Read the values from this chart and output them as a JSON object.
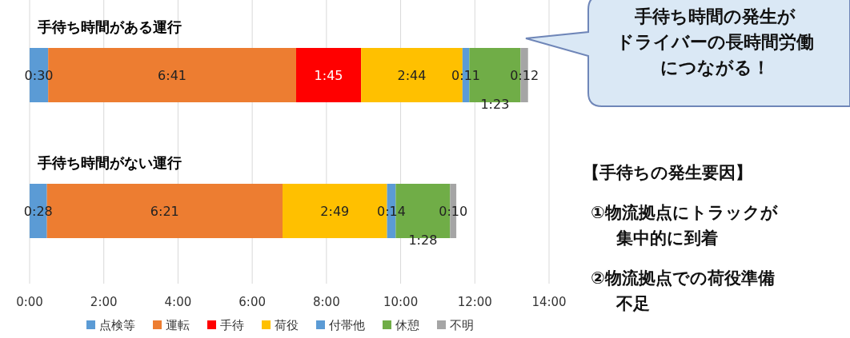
{
  "chart_data": {
    "type": "bar",
    "orientation": "horizontal",
    "stacked": true,
    "categories": [
      "手待ち時間がある運行",
      "手待ち時間がない運行"
    ],
    "series": [
      {
        "name": "点検等",
        "color": "#5b9bd5",
        "values": [
          30,
          28
        ],
        "value_labels": [
          "0:30",
          "0:28"
        ]
      },
      {
        "name": "運転",
        "color": "#ed7d31",
        "values": [
          401,
          381
        ],
        "value_labels": [
          "6:41",
          "6:21"
        ]
      },
      {
        "name": "手待",
        "color": "#ff0000",
        "values": [
          105,
          null
        ],
        "value_labels": [
          "1:45",
          null
        ]
      },
      {
        "name": "荷役",
        "color": "#ffc000",
        "values": [
          164,
          169
        ],
        "value_labels": [
          "2:44",
          "2:49"
        ]
      },
      {
        "name": "付帯他",
        "color": "#5b9bd5",
        "values": [
          11,
          14
        ],
        "value_labels": [
          "0:11",
          "0:14"
        ]
      },
      {
        "name": "休憩",
        "color": "#70ad47",
        "values": [
          83,
          88
        ],
        "value_labels": [
          "1:23",
          "1:28"
        ]
      },
      {
        "name": "不明",
        "color": "#a5a5a5",
        "values": [
          12,
          10
        ],
        "value_labels": [
          "0:12",
          "0:10"
        ]
      }
    ],
    "xlim": [
      0,
      840
    ],
    "xticks": [
      {
        "value": 0,
        "label": "0:00"
      },
      {
        "value": 120,
        "label": "2:00"
      },
      {
        "value": 240,
        "label": "4:00"
      },
      {
        "value": 360,
        "label": "6:00"
      },
      {
        "value": 480,
        "label": "8:00"
      },
      {
        "value": 600,
        "label": "10:00"
      },
      {
        "value": 720,
        "label": "12:00"
      },
      {
        "value": 840,
        "label": "14:00"
      }
    ],
    "grid": "x",
    "legend": "bottom",
    "annotations": [
      "手待ち時間の発生が",
      "ドライバーの長時間労働",
      "につながる！",
      "【手待ちの発生要因】",
      "①物流拠点にトラックが",
      "集中的に到着",
      "②物流拠点での荷役準備",
      "不足"
    ]
  }
}
